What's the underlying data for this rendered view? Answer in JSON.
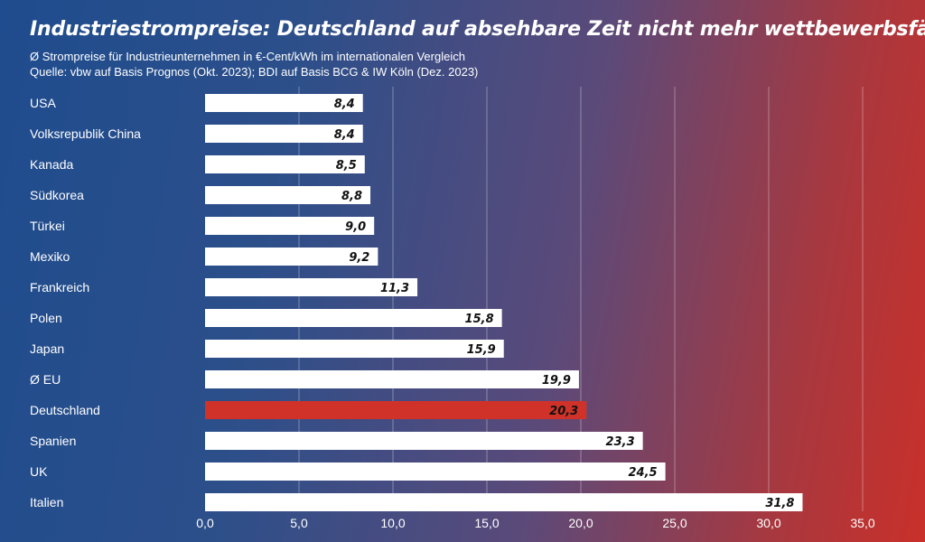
{
  "header": {
    "title": "Industriestrompreise: Deutschland auf absehbare Zeit nicht mehr wettbewerbsfähig",
    "subtitle": "Ø Strompreise für Industrieunternehmen in €-Cent/kWh im internationalen Vergleich",
    "source": "Quelle: vbw auf Basis Prognos (Okt. 2023); BDI auf Basis BCG & IW Köln (Dez. 2023)"
  },
  "colors": {
    "bar": "#ffffff",
    "highlight": "#d0322a",
    "value_text": "#111111"
  },
  "chart_data": {
    "type": "bar",
    "orientation": "horizontal",
    "categories": [
      "USA",
      "Volksrepublik China",
      "Kanada",
      "Südkorea",
      "Türkei",
      "Mexiko",
      "Frankreich",
      "Polen",
      "Japan",
      "Ø EU",
      "Deutschland",
      "Spanien",
      "UK",
      "Italien"
    ],
    "values": [
      8.4,
      8.4,
      8.5,
      8.8,
      9.0,
      9.2,
      11.3,
      15.8,
      15.9,
      19.9,
      20.3,
      23.3,
      24.5,
      31.8
    ],
    "value_labels": [
      "8,4",
      "8,4",
      "8,5",
      "8,8",
      "9,0",
      "9,2",
      "11,3",
      "15,8",
      "15,9",
      "19,9",
      "20,3",
      "23,3",
      "24,5",
      "31,8"
    ],
    "highlight_category": "Deutschland",
    "xlim": [
      0,
      35
    ],
    "xticks": [
      0,
      5,
      10,
      15,
      20,
      25,
      30,
      35
    ],
    "xtick_labels": [
      "0,0",
      "5,0",
      "10,0",
      "15,0",
      "20,0",
      "25,0",
      "30,0",
      "35,0"
    ],
    "grid": "vertical",
    "xlabel": "",
    "ylabel": ""
  }
}
